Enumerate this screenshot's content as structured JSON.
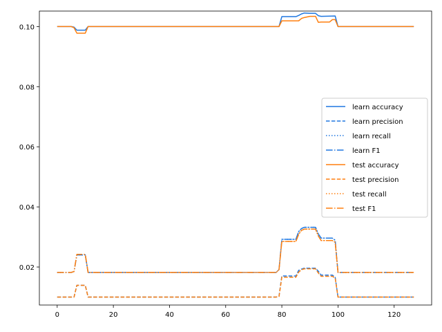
{
  "chart_data": {
    "type": "line",
    "title": "",
    "xlabel": "",
    "ylabel": "",
    "xlim": [
      -6.35,
      133.35
    ],
    "ylim": [
      0.00735,
      0.10515
    ],
    "xticks": [
      0,
      20,
      40,
      60,
      80,
      100,
      120
    ],
    "xtick_labels": [
      "0",
      "20",
      "40",
      "60",
      "80",
      "100",
      "120"
    ],
    "yticks": [
      0.02,
      0.04,
      0.06,
      0.08,
      0.1
    ],
    "ytick_labels": [
      "0.02",
      "0.04",
      "0.06",
      "0.08",
      "0.10"
    ],
    "grid": false,
    "legend": {
      "placement": "center-right"
    },
    "series": [
      {
        "name": "learn accuracy",
        "color": "#1f77e0",
        "dash": "solid",
        "points": [
          [
            0,
            0.1
          ],
          [
            5,
            0.1
          ],
          [
            6,
            0.0998
          ],
          [
            7,
            0.0988
          ],
          [
            10,
            0.0988
          ],
          [
            11,
            0.1
          ],
          [
            78,
            0.1
          ],
          [
            79,
            0.1
          ],
          [
            80,
            0.1033
          ],
          [
            84,
            0.1033
          ],
          [
            85,
            0.1033
          ],
          [
            86,
            0.1037
          ],
          [
            87,
            0.1042
          ],
          [
            88,
            0.1045
          ],
          [
            90,
            0.1044
          ],
          [
            92,
            0.1044
          ],
          [
            93,
            0.1036
          ],
          [
            94,
            0.1034
          ],
          [
            99,
            0.1035
          ],
          [
            100,
            0.1
          ],
          [
            127,
            0.1
          ]
        ]
      },
      {
        "name": "learn precision",
        "color": "#1f77e0",
        "dash": "dashed",
        "points": [
          [
            0,
            0.01
          ],
          [
            5,
            0.01
          ],
          [
            6,
            0.01
          ],
          [
            7,
            0.0139
          ],
          [
            10,
            0.0139
          ],
          [
            11,
            0.01
          ],
          [
            78,
            0.01
          ],
          [
            79,
            0.0103
          ],
          [
            80,
            0.017
          ],
          [
            84,
            0.017
          ],
          [
            85,
            0.017
          ],
          [
            86,
            0.0189
          ],
          [
            87,
            0.0193
          ],
          [
            88,
            0.0196
          ],
          [
            92,
            0.0196
          ],
          [
            93,
            0.0186
          ],
          [
            94,
            0.0173
          ],
          [
            98,
            0.0173
          ],
          [
            99,
            0.0166
          ],
          [
            100,
            0.01
          ],
          [
            127,
            0.01
          ]
        ]
      },
      {
        "name": "learn recall",
        "color": "#1f77e0",
        "dash": "dotted",
        "points": [
          [
            0,
            0.0182
          ],
          [
            5,
            0.0182
          ],
          [
            6,
            0.0185
          ],
          [
            7,
            0.024
          ],
          [
            10,
            0.024
          ],
          [
            11,
            0.0182
          ],
          [
            78,
            0.0182
          ],
          [
            79,
            0.0192
          ],
          [
            80,
            0.0292
          ],
          [
            84,
            0.0292
          ],
          [
            85,
            0.0292
          ],
          [
            86,
            0.0318
          ],
          [
            87,
            0.0328
          ],
          [
            88,
            0.0332
          ],
          [
            92,
            0.0332
          ],
          [
            93,
            0.031
          ],
          [
            94,
            0.0296
          ],
          [
            98,
            0.0296
          ],
          [
            99,
            0.0289
          ],
          [
            100,
            0.0182
          ],
          [
            127,
            0.0182
          ]
        ]
      },
      {
        "name": "learn F1",
        "color": "#1f77e0",
        "dash": "dashdot",
        "points": [
          [
            0,
            0.0182
          ],
          [
            5,
            0.0182
          ],
          [
            6,
            0.0185
          ],
          [
            7,
            0.024
          ],
          [
            10,
            0.024
          ],
          [
            11,
            0.0182
          ],
          [
            78,
            0.0182
          ],
          [
            79,
            0.0192
          ],
          [
            80,
            0.0292
          ],
          [
            84,
            0.0292
          ],
          [
            85,
            0.0292
          ],
          [
            86,
            0.0318
          ],
          [
            87,
            0.0328
          ],
          [
            88,
            0.0332
          ],
          [
            92,
            0.0332
          ],
          [
            93,
            0.031
          ],
          [
            94,
            0.0296
          ],
          [
            98,
            0.0296
          ],
          [
            99,
            0.0289
          ],
          [
            100,
            0.0182
          ],
          [
            127,
            0.0182
          ]
        ]
      },
      {
        "name": "test accuracy",
        "color": "#ff7f0e",
        "dash": "solid",
        "points": [
          [
            0,
            0.1
          ],
          [
            5,
            0.1
          ],
          [
            6,
            0.0996
          ],
          [
            7,
            0.0978
          ],
          [
            10,
            0.0978
          ],
          [
            11,
            0.1
          ],
          [
            78,
            0.1
          ],
          [
            79,
            0.1
          ],
          [
            80,
            0.1019
          ],
          [
            84,
            0.1019
          ],
          [
            85,
            0.1019
          ],
          [
            86,
            0.1019
          ],
          [
            87,
            0.1027
          ],
          [
            88,
            0.103
          ],
          [
            90,
            0.1034
          ],
          [
            92,
            0.1034
          ],
          [
            93,
            0.1014
          ],
          [
            94,
            0.1015
          ],
          [
            97,
            0.1015
          ],
          [
            98,
            0.1023
          ],
          [
            99,
            0.1023
          ],
          [
            100,
            0.1
          ],
          [
            127,
            0.1
          ]
        ]
      },
      {
        "name": "test precision",
        "color": "#ff7f0e",
        "dash": "dashed",
        "points": [
          [
            0,
            0.01
          ],
          [
            5,
            0.01
          ],
          [
            6,
            0.01
          ],
          [
            7,
            0.0139
          ],
          [
            10,
            0.0139
          ],
          [
            11,
            0.01
          ],
          [
            78,
            0.01
          ],
          [
            79,
            0.0102
          ],
          [
            80,
            0.0166
          ],
          [
            84,
            0.0166
          ],
          [
            85,
            0.0166
          ],
          [
            86,
            0.0183
          ],
          [
            87,
            0.0191
          ],
          [
            88,
            0.0194
          ],
          [
            92,
            0.0194
          ],
          [
            93,
            0.018
          ],
          [
            94,
            0.0169
          ],
          [
            98,
            0.0169
          ],
          [
            99,
            0.0163
          ],
          [
            100,
            0.01
          ],
          [
            127,
            0.01
          ]
        ]
      },
      {
        "name": "test recall",
        "color": "#ff7f0e",
        "dash": "dotted",
        "points": [
          [
            0,
            0.0182
          ],
          [
            5,
            0.0182
          ],
          [
            6,
            0.0185
          ],
          [
            7,
            0.0242
          ],
          [
            10,
            0.0242
          ],
          [
            11,
            0.0182
          ],
          [
            78,
            0.0182
          ],
          [
            79,
            0.0191
          ],
          [
            80,
            0.0285
          ],
          [
            84,
            0.0285
          ],
          [
            85,
            0.0285
          ],
          [
            86,
            0.0309
          ],
          [
            87,
            0.0322
          ],
          [
            88,
            0.0326
          ],
          [
            92,
            0.0326
          ],
          [
            93,
            0.0303
          ],
          [
            94,
            0.0288
          ],
          [
            98,
            0.0288
          ],
          [
            99,
            0.0282
          ],
          [
            100,
            0.0182
          ],
          [
            127,
            0.0182
          ]
        ]
      },
      {
        "name": "test F1",
        "color": "#ff7f0e",
        "dash": "dashdot",
        "points": [
          [
            0,
            0.0182
          ],
          [
            5,
            0.0182
          ],
          [
            6,
            0.0185
          ],
          [
            7,
            0.0242
          ],
          [
            10,
            0.0242
          ],
          [
            11,
            0.0182
          ],
          [
            78,
            0.0182
          ],
          [
            79,
            0.0191
          ],
          [
            80,
            0.0285
          ],
          [
            84,
            0.0285
          ],
          [
            85,
            0.0285
          ],
          [
            86,
            0.0309
          ],
          [
            87,
            0.0322
          ],
          [
            88,
            0.0326
          ],
          [
            92,
            0.0326
          ],
          [
            93,
            0.0303
          ],
          [
            94,
            0.0288
          ],
          [
            98,
            0.0288
          ],
          [
            99,
            0.0282
          ],
          [
            100,
            0.0182
          ],
          [
            127,
            0.0182
          ]
        ]
      }
    ]
  }
}
